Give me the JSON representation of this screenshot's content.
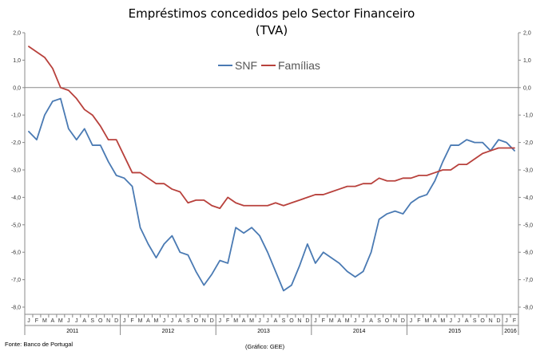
{
  "chart_data": {
    "type": "line",
    "title": "Empréstimos concedidos pelo Sector Financeiro",
    "subtitle": "(TVA)",
    "ylim": [
      -8.0,
      2.0
    ],
    "yticks": [
      2.0,
      1.0,
      0.0,
      -1.0,
      -2.0,
      -3.0,
      -4.0,
      -5.0,
      -6.0,
      -7.0,
      -8.0
    ],
    "ytick_labels": [
      "2,0",
      "1,0",
      "0,0",
      "-1,0",
      "-2,0",
      "-3,0",
      "-4,0",
      "-5,0",
      "-6,0",
      "-7,0",
      "-8,0"
    ],
    "month_labels": [
      "J",
      "F",
      "M",
      "A",
      "M",
      "J",
      "J",
      "A",
      "S",
      "O",
      "N",
      "D",
      "J",
      "F",
      "M",
      "A",
      "M",
      "J",
      "J",
      "A",
      "S",
      "O",
      "N",
      "D",
      "J",
      "F",
      "M",
      "A",
      "M",
      "J",
      "J",
      "A",
      "S",
      "O",
      "N",
      "D",
      "J",
      "F",
      "M",
      "A",
      "M",
      "J",
      "J",
      "A",
      "S",
      "O",
      "N",
      "D",
      "J",
      "F",
      "M",
      "A",
      "M",
      "J",
      "J",
      "A",
      "S",
      "O",
      "N",
      "D",
      "J",
      "F"
    ],
    "years": [
      {
        "label": "2011",
        "start": 0,
        "count": 12
      },
      {
        "label": "2012",
        "start": 12,
        "count": 12
      },
      {
        "label": "2013",
        "start": 24,
        "count": 12
      },
      {
        "label": "2014",
        "start": 36,
        "count": 12
      },
      {
        "label": "2015",
        "start": 48,
        "count": 12
      },
      {
        "label": "2016",
        "start": 60,
        "count": 2
      }
    ],
    "legend_position": "top-center",
    "series": [
      {
        "name": "SNF",
        "color": "#4a7ab3",
        "values": [
          -1.6,
          -1.9,
          -1.0,
          -0.5,
          -0.4,
          -1.5,
          -1.9,
          -1.5,
          -2.1,
          -2.1,
          -2.7,
          -3.2,
          -3.3,
          -3.6,
          -5.1,
          -5.7,
          -6.2,
          -5.7,
          -5.4,
          -6.0,
          -6.1,
          -6.7,
          -7.2,
          -6.8,
          -6.3,
          -6.4,
          -5.1,
          -5.3,
          -5.1,
          -5.4,
          -6.0,
          -6.7,
          -7.4,
          -7.2,
          -6.5,
          -5.7,
          -6.4,
          -6.0,
          -6.2,
          -6.4,
          -6.7,
          -6.9,
          -6.7,
          -6.0,
          -4.8,
          -4.6,
          -4.5,
          -4.6,
          -4.2,
          -4.0,
          -3.9,
          -3.4,
          -2.7,
          -2.1,
          -2.1,
          -1.9,
          -2.0,
          -2.0,
          -2.3,
          -1.9,
          -2.0,
          -2.3
        ]
      },
      {
        "name": "Famílias",
        "color": "#b8413c",
        "values": [
          1.5,
          1.3,
          1.1,
          0.7,
          0.0,
          -0.1,
          -0.4,
          -0.8,
          -1.0,
          -1.4,
          -1.9,
          -1.9,
          -2.5,
          -3.1,
          -3.1,
          -3.3,
          -3.5,
          -3.5,
          -3.7,
          -3.8,
          -4.2,
          -4.1,
          -4.1,
          -4.3,
          -4.4,
          -4.0,
          -4.2,
          -4.3,
          -4.3,
          -4.3,
          -4.3,
          -4.2,
          -4.3,
          -4.2,
          -4.1,
          -4.0,
          -3.9,
          -3.9,
          -3.8,
          -3.7,
          -3.6,
          -3.6,
          -3.5,
          -3.5,
          -3.3,
          -3.4,
          -3.4,
          -3.3,
          -3.3,
          -3.2,
          -3.2,
          -3.1,
          -3.0,
          -3.0,
          -2.8,
          -2.8,
          -2.6,
          -2.4,
          -2.3,
          -2.2,
          -2.2,
          -2.2
        ]
      }
    ]
  },
  "footer": {
    "source": "Fonte: Banco de Portugal",
    "credit": "(Gráfico: GEE)"
  }
}
